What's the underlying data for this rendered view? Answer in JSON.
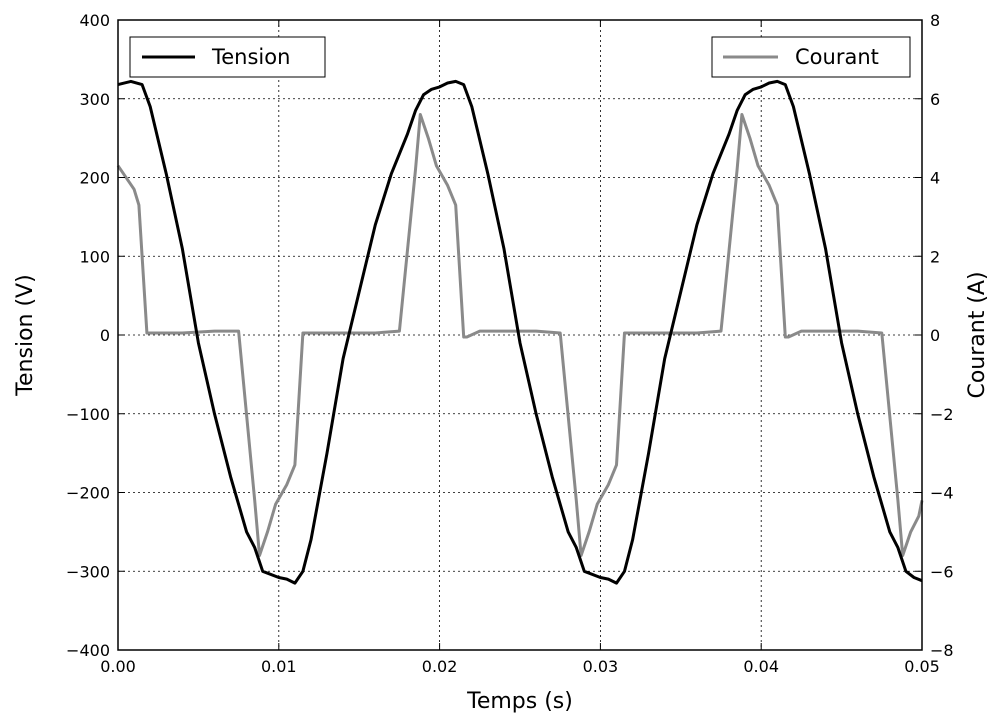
{
  "chart_data": {
    "type": "line",
    "x_axis": {
      "label": "Temps (s)",
      "lim": [
        0,
        0.05
      ],
      "ticks": [
        0,
        0.01,
        0.02,
        0.03,
        0.04,
        0.05
      ],
      "tick_labels": [
        "0.00",
        "0.01",
        "0.02",
        "0.03",
        "0.04",
        "0.05"
      ]
    },
    "y_left": {
      "label": "Tension (V)",
      "lim": [
        -400,
        400
      ],
      "ticks": [
        -400,
        -300,
        -200,
        -100,
        0,
        100,
        200,
        300,
        400
      ],
      "tick_labels": [
        "−400",
        "−300",
        "−200",
        "−100",
        "0",
        "100",
        "200",
        "300",
        "400"
      ]
    },
    "y_right": {
      "label": "Courant (A)",
      "lim": [
        -8,
        8
      ],
      "ticks": [
        -8,
        -6,
        -4,
        -2,
        0,
        2,
        4,
        6,
        8
      ],
      "tick_labels": [
        "−8",
        "−6",
        "−4",
        "−2",
        "0",
        "2",
        "4",
        "6",
        "8"
      ]
    },
    "grid": true,
    "series": [
      {
        "name": "Tension",
        "axis": "left",
        "color": "#000000",
        "legend_position": "upper-left",
        "x": [
          0,
          0.0008,
          0.0015,
          0.002,
          0.003,
          0.004,
          0.005,
          0.006,
          0.007,
          0.0075,
          0.008,
          0.0085,
          0.009,
          0.01,
          0.0105,
          0.011,
          0.0115,
          0.012,
          0.013,
          0.014,
          0.015,
          0.016,
          0.017,
          0.018,
          0.0185,
          0.019,
          0.0195,
          0.02,
          0.0205,
          0.021,
          0.0215,
          0.022,
          0.023,
          0.024,
          0.025,
          0.026,
          0.027,
          0.0275,
          0.028,
          0.0285,
          0.029,
          0.03,
          0.0305,
          0.031,
          0.0315,
          0.032,
          0.033,
          0.034,
          0.035,
          0.036,
          0.037,
          0.038,
          0.0385,
          0.039,
          0.0395,
          0.04,
          0.0405,
          0.041,
          0.0415,
          0.042,
          0.043,
          0.044,
          0.045,
          0.046,
          0.047,
          0.0475,
          0.048,
          0.0485,
          0.049,
          0.0495,
          0.05
        ],
        "y": [
          318,
          322,
          318,
          290,
          205,
          110,
          -10,
          -100,
          -180,
          -215,
          -250,
          -270,
          -300,
          -308,
          -310,
          -315,
          -300,
          -260,
          -150,
          -30,
          55,
          140,
          205,
          255,
          285,
          305,
          312,
          315,
          320,
          322,
          318,
          290,
          205,
          110,
          -10,
          -100,
          -180,
          -215,
          -250,
          -270,
          -300,
          -308,
          -310,
          -315,
          -300,
          -260,
          -150,
          -30,
          55,
          140,
          205,
          255,
          285,
          305,
          312,
          315,
          320,
          322,
          318,
          290,
          205,
          110,
          -10,
          -100,
          -180,
          -215,
          -250,
          -270,
          -300,
          -308,
          -312
        ]
      },
      {
        "name": "Courant",
        "axis": "right",
        "color": "#8a8a8a",
        "legend_position": "upper-right",
        "x": [
          0,
          0.001,
          0.0013,
          0.0018,
          0.002,
          0.004,
          0.006,
          0.0075,
          0.0085,
          0.0088,
          0.0093,
          0.0098,
          0.0105,
          0.011,
          0.0115,
          0.0117,
          0.0125,
          0.014,
          0.016,
          0.0175,
          0.0185,
          0.0188,
          0.0193,
          0.0198,
          0.0205,
          0.021,
          0.0215,
          0.0217,
          0.0225,
          0.024,
          0.026,
          0.0275,
          0.0285,
          0.0288,
          0.0293,
          0.0298,
          0.0305,
          0.031,
          0.0315,
          0.0317,
          0.0325,
          0.034,
          0.036,
          0.0375,
          0.0385,
          0.0388,
          0.0393,
          0.0398,
          0.0405,
          0.041,
          0.0415,
          0.0417,
          0.0425,
          0.044,
          0.046,
          0.0475,
          0.0485,
          0.0488,
          0.0493,
          0.0498,
          0.05
        ],
        "y": [
          4.3,
          3.7,
          3.3,
          0.05,
          0.05,
          0.05,
          0.1,
          0.1,
          -4.2,
          -5.6,
          -5.0,
          -4.3,
          -3.8,
          -3.3,
          0.05,
          0.05,
          0.05,
          0.05,
          0.05,
          0.1,
          4.2,
          5.6,
          5.0,
          4.3,
          3.8,
          3.3,
          -0.05,
          -0.05,
          0.1,
          0.1,
          0.1,
          0.05,
          -4.2,
          -5.6,
          -5.0,
          -4.3,
          -3.8,
          -3.3,
          0.05,
          0.05,
          0.05,
          0.05,
          0.05,
          0.1,
          4.2,
          5.6,
          5.0,
          4.3,
          3.8,
          3.3,
          -0.05,
          -0.05,
          0.1,
          0.1,
          0.1,
          0.05,
          -4.2,
          -5.6,
          -5.0,
          -4.6,
          -4.2
        ]
      }
    ]
  }
}
